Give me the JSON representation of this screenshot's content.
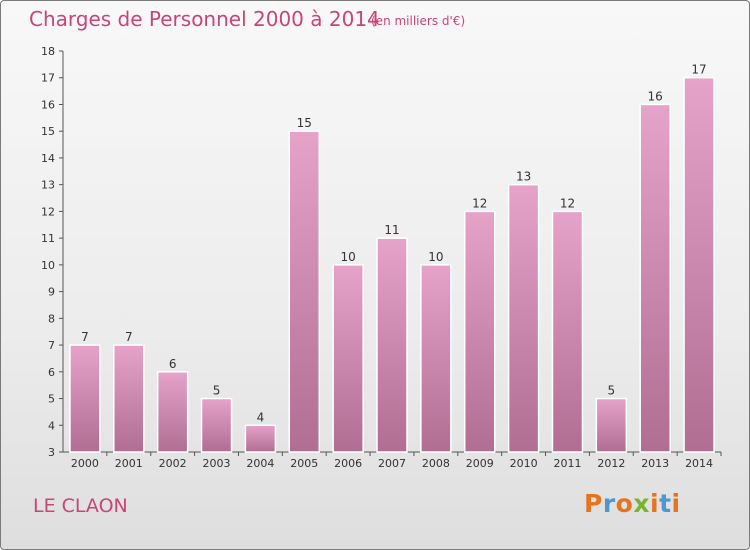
{
  "header": {
    "title": "Charges de Personnel 2000 à 2014",
    "subtitle": "(en milliers d'€)"
  },
  "footer": {
    "commune": "LE CLAON",
    "logo_text": "Proxiti"
  },
  "colors": {
    "bar_light": "#e6a3ca",
    "bar_dark": "#b06e93",
    "title": "#c8457a",
    "logo_letters": [
      "#e8731e",
      "#4a98cf",
      "#e8731e",
      "#7ab32e",
      "#e8731e",
      "#4a98cf",
      "#e8731e"
    ]
  },
  "chart_data": {
    "type": "bar",
    "title": "Charges de Personnel 2000 à 2014",
    "subtitle": "(en milliers d'€)",
    "categories": [
      "2000",
      "2001",
      "2002",
      "2003",
      "2004",
      "2005",
      "2006",
      "2007",
      "2008",
      "2009",
      "2010",
      "2011",
      "2012",
      "2013",
      "2014"
    ],
    "values": [
      7,
      7,
      6,
      5,
      4,
      15,
      10,
      11,
      10,
      12,
      13,
      12,
      5,
      16,
      17
    ],
    "ylim": [
      3,
      18
    ],
    "yticks": [
      3,
      4,
      5,
      6,
      7,
      8,
      9,
      10,
      11,
      12,
      13,
      14,
      15,
      16,
      17,
      18
    ],
    "grid": false,
    "xlabel": "",
    "ylabel": ""
  }
}
